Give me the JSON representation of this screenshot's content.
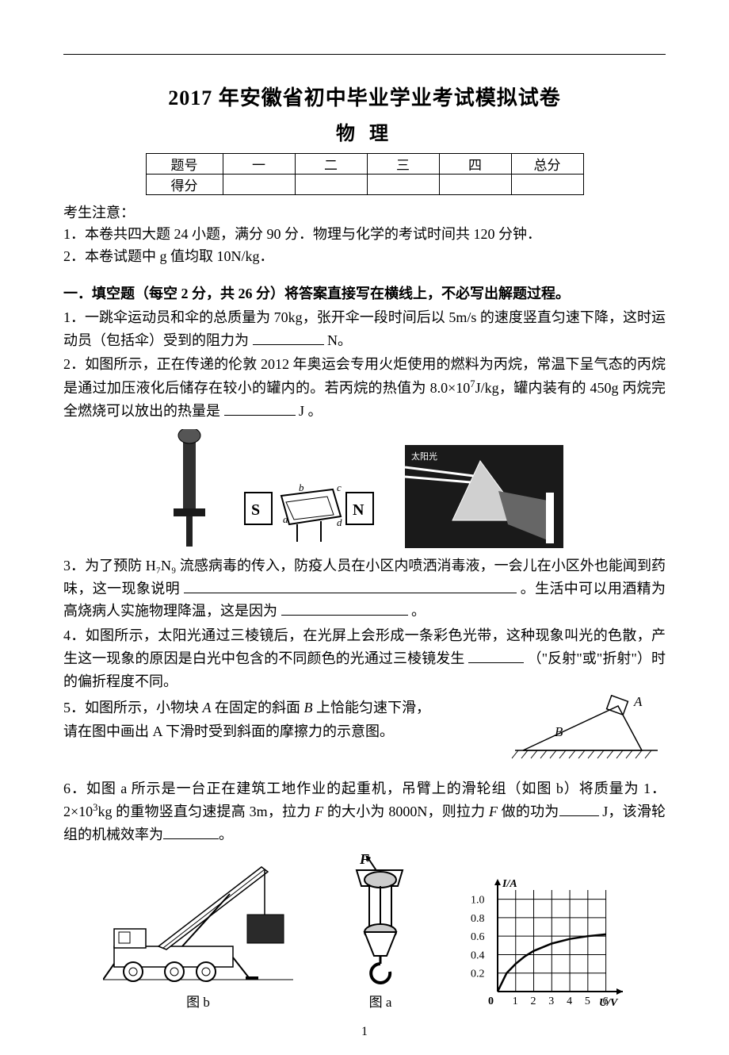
{
  "header": {
    "title": "2017 年安徽省初中毕业学业考试模拟试卷",
    "subject": "物 理"
  },
  "score_table": {
    "row1": [
      "题号",
      "一",
      "二",
      "三",
      "四",
      "总分"
    ],
    "row2_label": "得分"
  },
  "notice": {
    "title": "考生注意：",
    "line1": "1．本卷共四大题 24 小题，满分 90 分．物理与化学的考试时间共 120 分钟．",
    "line2": "2．本卷试题中 g 值均取 10N/kg．"
  },
  "section1": {
    "head": "一．填空题（每空 2 分，共 26 分）将答案直接写在横线上，不必写出解题过程。"
  },
  "q1": {
    "text_a": "1．一跳伞运动员和伞的总质量为 70kg，张开伞一段时间后以 5m/s 的速度竖直匀速下降，这时运动员（包括伞）受到的阻力为",
    "text_b": "N。"
  },
  "q2": {
    "text_a": "2．如图所示，正在传递的伦敦 2012 年奥运会专用火炬使用的燃料为丙烷，常温下呈气态的丙烷是通过加压液化后储存在较小的罐内的。若丙烷的热值为 8.0×10",
    "sup": "7",
    "text_b": "J/kg，罐内装有的 450g 丙烷完全燃烧可以放出的热量是",
    "text_c": "J 。"
  },
  "q3": {
    "text_a": "3．为了预防 H₇N₉ 流感病毒的传入，防疫人员在小区内喷洒消毒液，一会儿在小区外也能闻到药味，这一现象说明",
    "text_b": "。生活中可以用酒精为高烧病人实施物理降温，这是因为",
    "text_c": "。"
  },
  "q4": {
    "text_a": "4．如图所示，太阳光通过三棱镜后，在光屏上会形成一条彩色光带，这种现象叫光的色散，产生这一现象的原因是白光中包含的不同颜色的光通过三棱镜发生 ",
    "text_b": "（\"反射\"或\"折射\"）时的偏折程度不同。"
  },
  "q5": {
    "line1_a": "5．如图所示，小物块 ",
    "line1_i1": "A",
    "line1_b": " 在固定的斜面 ",
    "line1_i2": "B",
    "line1_c": " 上恰能匀速下滑，",
    "line2": "请在图中画出 A 下滑时受到斜面的摩擦力的示意图。",
    "label_A": "A",
    "label_B": "B"
  },
  "q6": {
    "text_a": "6．如图 a 所示是一台正在建筑工地作业的起重机，吊臂上的滑轮组（如图 b）将质量为 1．2×10",
    "sup": "3",
    "text_b": "kg 的重物竖直匀速提高 3m，拉力 ",
    "text_i": "F",
    "text_c": " 的大小为 8000N，则拉力 ",
    "text_i2": "F",
    "text_d": " 做的功为",
    "text_e": "J，该滑轮组的机械效率为",
    "text_f": "。",
    "cap_b": "图 b",
    "cap_a": "图 a"
  },
  "chart": {
    "type": "line",
    "x_label": "U/V",
    "y_label": "I/A",
    "x_ticks": [
      1,
      2,
      3,
      4,
      5,
      6
    ],
    "y_ticks": [
      0.2,
      0.4,
      0.6,
      0.8,
      1.0
    ],
    "xlim": [
      0,
      6.5
    ],
    "ylim": [
      0,
      1.1
    ],
    "points": [
      [
        0,
        0
      ],
      [
        0.5,
        0.2
      ],
      [
        1,
        0.3
      ],
      [
        1.5,
        0.38
      ],
      [
        2,
        0.44
      ],
      [
        3,
        0.52
      ],
      [
        4,
        0.57
      ],
      [
        5,
        0.6
      ],
      [
        6,
        0.62
      ]
    ],
    "line_color": "#000000",
    "grid_color": "#000000",
    "background": "#ffffff",
    "line_width": 2,
    "axis_width": 2,
    "font_size": 14
  },
  "figures_row1": {
    "torch_bg": "#000000",
    "magnet_labels": {
      "S": "S",
      "N": "N",
      "a": "a",
      "b": "b",
      "c": "c",
      "d": "d"
    },
    "prism_bg": "#000000"
  },
  "page_number": "1"
}
